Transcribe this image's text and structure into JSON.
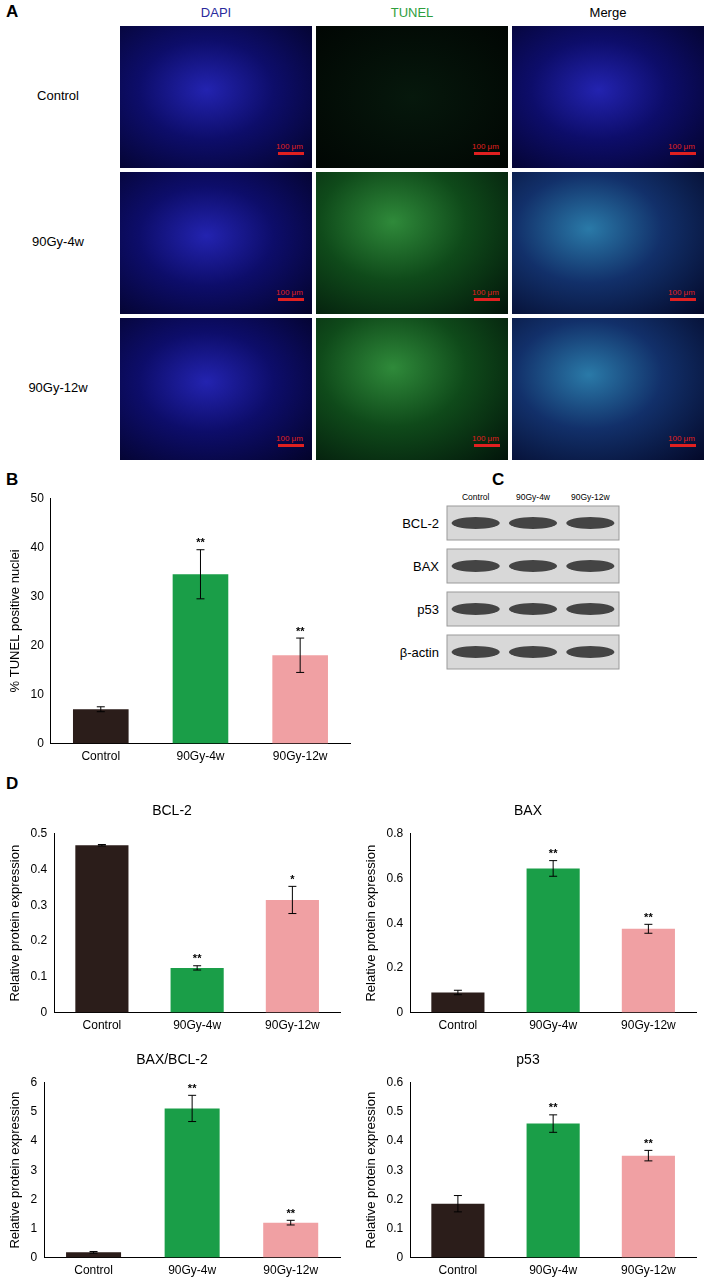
{
  "panel_a": {
    "panel": "A",
    "columns": [
      {
        "label": "DAPI",
        "color": "#2a2a9c"
      },
      {
        "label": "TUNEL",
        "color": "#2e9e3e"
      },
      {
        "label": "Merge",
        "color": "#000000"
      }
    ],
    "rows": [
      "Control",
      "90Gy-4w",
      "90Gy-12w"
    ],
    "scale_bar": "100 μm"
  },
  "panel_c": {
    "panel": "C",
    "lanes": [
      "Control",
      "90Gy-4w",
      "90Gy-12w"
    ],
    "bands": [
      "BCL-2",
      "BAX",
      "p53",
      "β-actin"
    ]
  },
  "chart_data": [
    {
      "panel": "B",
      "type": "bar",
      "y_label": "% TUNEL positive nuclei",
      "categories": [
        "Control",
        "90Gy-4w",
        "90Gy-12w"
      ],
      "values": [
        7,
        34.5,
        18
      ],
      "errors": [
        0.5,
        5,
        3.5
      ],
      "significance": [
        null,
        "**",
        "**"
      ],
      "colors": [
        "#2b1d1a",
        "#1a9e48",
        "#f0a0a3"
      ],
      "ylim": [
        0,
        50
      ],
      "yticks": [
        0,
        10,
        20,
        30,
        40,
        50
      ],
      "grid": false
    },
    {
      "panel": "D",
      "type": "bar",
      "title": "BCL-2",
      "y_label": "Relative protein expression",
      "categories": [
        "Control",
        "90Gy-4w",
        "90Gy-12w"
      ],
      "values": [
        0.468,
        0.125,
        0.315
      ],
      "errors": [
        0.002,
        0.006,
        0.038
      ],
      "significance": [
        null,
        "**",
        "*"
      ],
      "colors": [
        "#2b1d1a",
        "#1a9e48",
        "#f0a0a3"
      ],
      "ylim": [
        0,
        0.5
      ],
      "yticks": [
        0,
        0.1,
        0.2,
        0.3,
        0.4,
        0.5
      ],
      "grid": false
    },
    {
      "type": "bar",
      "title": "BAX",
      "y_label": "Relative protein expression",
      "categories": [
        "Control",
        "90Gy-4w",
        "90Gy-12w"
      ],
      "values": [
        0.09,
        0.645,
        0.375
      ],
      "errors": [
        0.01,
        0.035,
        0.02
      ],
      "significance": [
        null,
        "**",
        "**"
      ],
      "colors": [
        "#2b1d1a",
        "#1a9e48",
        "#f0a0a3"
      ],
      "ylim": [
        0,
        0.8
      ],
      "yticks": [
        0,
        0.2,
        0.4,
        0.6,
        0.8
      ],
      "grid": false
    },
    {
      "type": "bar",
      "title": "BAX/BCL-2",
      "y_label": "Relative protein expression",
      "categories": [
        "Control",
        "90Gy-4w",
        "90Gy-12w"
      ],
      "values": [
        0.18,
        5.12,
        1.2
      ],
      "errors": [
        0.03,
        0.45,
        0.08
      ],
      "significance": [
        null,
        "**",
        "**"
      ],
      "colors": [
        "#2b1d1a",
        "#1a9e48",
        "#f0a0a3"
      ],
      "ylim": [
        0,
        6
      ],
      "yticks": [
        0,
        1,
        2,
        3,
        4,
        5,
        6
      ],
      "grid": false
    },
    {
      "type": "bar",
      "title": "p53",
      "y_label": "Relative protein expression",
      "categories": [
        "Control",
        "90Gy-4w",
        "90Gy-12w"
      ],
      "values": [
        0.185,
        0.46,
        0.35
      ],
      "errors": [
        0.028,
        0.03,
        0.018
      ],
      "significance": [
        null,
        "**",
        "**"
      ],
      "colors": [
        "#2b1d1a",
        "#1a9e48",
        "#f0a0a3"
      ],
      "ylim": [
        0,
        0.6
      ],
      "yticks": [
        0,
        0.1,
        0.2,
        0.3,
        0.4,
        0.5,
        0.6
      ],
      "grid": false
    }
  ]
}
